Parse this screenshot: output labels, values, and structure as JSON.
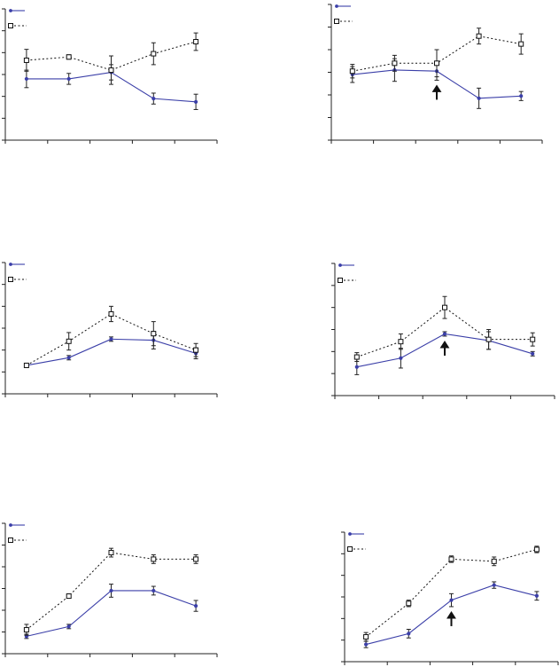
{
  "chart_data": [
    {
      "type": "line",
      "x": [
        1,
        2,
        3,
        4,
        5
      ],
      "xlim": [
        0.5,
        5.5
      ],
      "ylim": [
        0,
        6
      ],
      "series": [
        {
          "values": [
            2.8,
            2.8,
            3.1,
            1.9,
            1.75
          ],
          "errors": [
            0.4,
            0.25,
            0.35,
            0.25,
            0.35
          ]
        },
        {
          "values": [
            3.65,
            3.8,
            3.2,
            3.95,
            4.5
          ],
          "errors": [
            0.5,
            0.1,
            0.65,
            0.5,
            0.4
          ]
        }
      ],
      "arrow_at_x": null
    },
    {
      "type": "line",
      "x": [
        1,
        2,
        3,
        4,
        5
      ],
      "xlim": [
        0.5,
        5.5
      ],
      "ylim": [
        0,
        6
      ],
      "series": [
        {
          "values": [
            2.9,
            3.1,
            3.05,
            1.85,
            1.95
          ],
          "errors": [
            0.35,
            0.5,
            0.4,
            0.45,
            0.2
          ]
        },
        {
          "values": [
            3.05,
            3.4,
            3.4,
            4.6,
            4.25
          ],
          "errors": [
            0.3,
            0.35,
            0.6,
            0.35,
            0.45
          ]
        }
      ],
      "arrow_at_x": 3
    },
    {
      "type": "line",
      "x": [
        1,
        2,
        3,
        4,
        5
      ],
      "xlim": [
        0.5,
        5.5
      ],
      "ylim": [
        0,
        6
      ],
      "series": [
        {
          "values": [
            1.3,
            1.65,
            2.5,
            2.45,
            1.85
          ],
          "errors": [
            0.1,
            0.1,
            0.1,
            0.4,
            0.25
          ]
        },
        {
          "values": [
            1.3,
            2.4,
            3.65,
            2.75,
            2.0
          ],
          "errors": [
            0.05,
            0.4,
            0.35,
            0.55,
            0.3
          ]
        }
      ],
      "arrow_at_x": null
    },
    {
      "type": "line",
      "x": [
        1,
        2,
        3,
        4,
        5
      ],
      "xlim": [
        0.5,
        5.5
      ],
      "ylim": [
        0,
        6
      ],
      "series": [
        {
          "values": [
            1.3,
            1.7,
            2.8,
            2.5,
            1.9
          ],
          "errors": [
            0.35,
            0.45,
            0.1,
            0.4,
            0.1
          ]
        },
        {
          "values": [
            1.75,
            2.45,
            4.0,
            2.55,
            2.55
          ],
          "errors": [
            0.2,
            0.35,
            0.5,
            0.45,
            0.3
          ]
        }
      ],
      "arrow_at_x": 3
    },
    {
      "type": "line",
      "x": [
        1,
        2,
        3,
        4,
        5
      ],
      "xlim": [
        0.5,
        5.5
      ],
      "ylim": [
        0,
        6
      ],
      "series": [
        {
          "values": [
            0.8,
            1.25,
            2.9,
            2.9,
            2.2
          ],
          "errors": [
            0.1,
            0.1,
            0.3,
            0.2,
            0.25
          ]
        },
        {
          "values": [
            1.1,
            2.65,
            4.65,
            4.35,
            4.35
          ],
          "errors": [
            0.25,
            0.1,
            0.2,
            0.2,
            0.2
          ]
        }
      ],
      "arrow_at_x": null
    },
    {
      "type": "line",
      "x": [
        1,
        2,
        3,
        4,
        5
      ],
      "xlim": [
        0.5,
        5.5
      ],
      "ylim": [
        0,
        6
      ],
      "series": [
        {
          "values": [
            0.8,
            1.3,
            2.85,
            3.55,
            3.05
          ],
          "errors": [
            0.15,
            0.2,
            0.3,
            0.15,
            0.2
          ]
        },
        {
          "values": [
            1.15,
            2.7,
            4.75,
            4.65,
            5.2
          ],
          "errors": [
            0.2,
            0.15,
            0.15,
            0.2,
            0.15
          ]
        }
      ],
      "arrow_at_x": 3
    }
  ]
}
